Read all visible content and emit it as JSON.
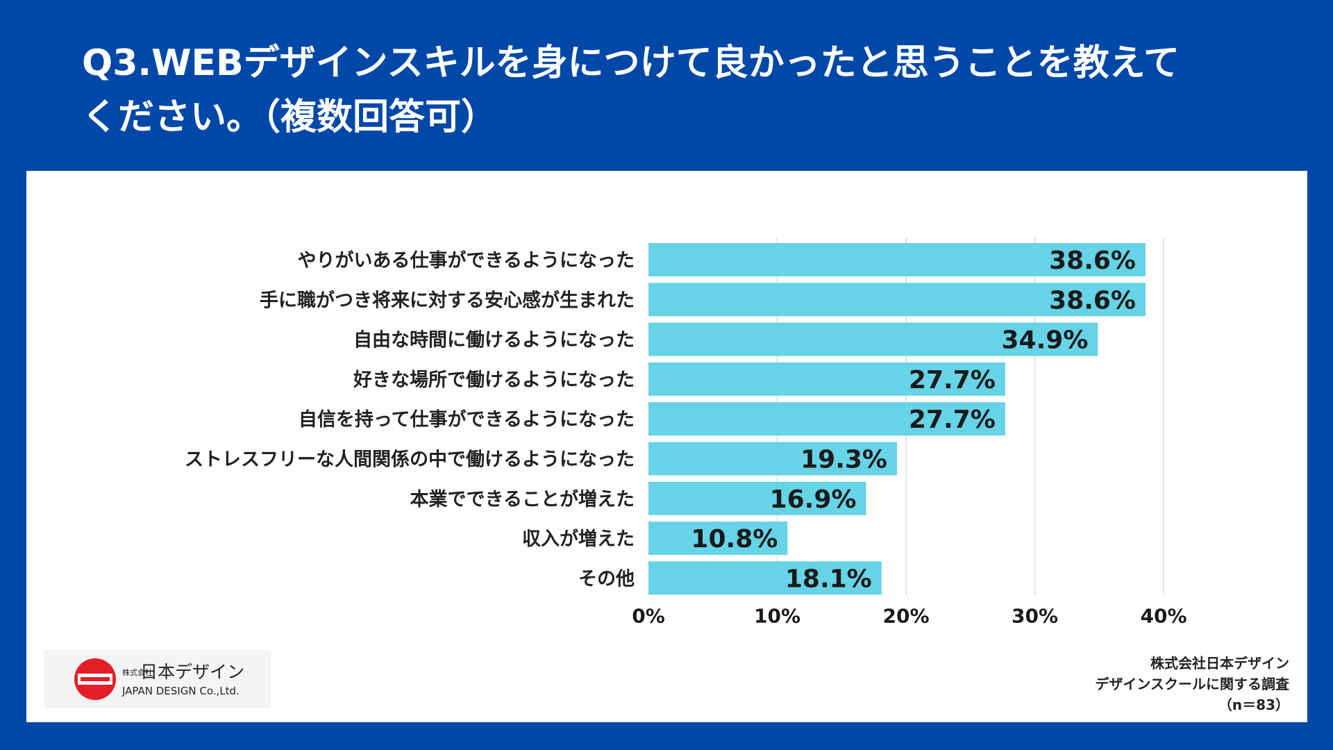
{
  "header": {
    "title_line1": "Q3.WEBデザインスキルを身につけて良かったと思うことを教えて",
    "title_line2": "ください。（複数回答可）"
  },
  "chart_data": {
    "type": "bar",
    "orientation": "horizontal",
    "categories": [
      "やりがいある仕事ができるようになった",
      "手に職がつき将来に対する安心感が生まれた",
      "自由な時間に働けるようになった",
      "好きな場所で働けるようになった",
      "自信を持って仕事ができるようになった",
      "ストレスフリーな人間関係の中で働けるようになった",
      "本業でできることが増えた",
      "収入が増えた",
      "その他"
    ],
    "values": [
      38.6,
      38.6,
      34.9,
      27.7,
      27.7,
      19.3,
      16.9,
      10.8,
      18.1
    ],
    "value_labels": [
      "38.6%",
      "38.6%",
      "34.9%",
      "27.7%",
      "27.7%",
      "19.3%",
      "16.9%",
      "10.8%",
      "18.1%"
    ],
    "xticks": [
      "0%",
      "10%",
      "20%",
      "30%",
      "40%"
    ],
    "xlim": [
      0,
      40
    ],
    "grid": true,
    "bar_color": "#66d3e6"
  },
  "logo": {
    "prefix": "株式会社",
    "name": "日本デザイン",
    "name_en": "JAPAN DESIGN Co.,Ltd."
  },
  "source": {
    "line1": "株式会社日本デザイン",
    "line2": "デザインスクールに関する調査",
    "line3": "（n＝83）"
  },
  "colors": {
    "background": "#0048a8",
    "panel": "#ffffff",
    "logo_red": "#e21f26"
  }
}
